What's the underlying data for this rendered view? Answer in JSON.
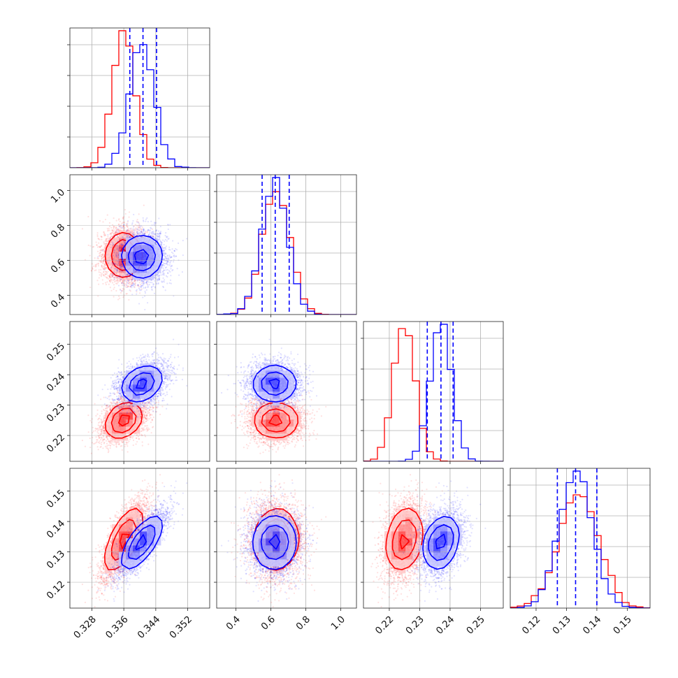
{
  "chart_data": {
    "type": "corner",
    "layout": "lower-triangle 4x4 grid",
    "grid": true,
    "legend": "none",
    "series": [
      {
        "color": "#ff0000",
        "means": [
          0.336,
          0.63,
          0.225,
          0.134
        ],
        "sds": [
          0.0028,
          0.08,
          0.0036,
          0.0065
        ]
      },
      {
        "color": "#0000ff",
        "means": [
          0.3405,
          0.62,
          0.237,
          0.133
        ],
        "sds": [
          0.0031,
          0.075,
          0.0035,
          0.0055
        ]
      }
    ],
    "correlation_notes": {
      "red": {
        "0-3": 0.75,
        "0-1": 0.0,
        "0-2": 0.35
      },
      "blue": {
        "0-3": 0.8,
        "0-1": 0.0,
        "0-2": 0.35
      }
    },
    "quantile_lines": {
      "color": "#0000ff",
      "style": "dashed",
      "values": [
        [
          0.3375,
          0.3408,
          0.3442
        ],
        [
          0.55,
          0.625,
          0.705
        ],
        [
          0.2325,
          0.237,
          0.241
        ],
        [
          0.127,
          0.133,
          0.14
        ]
      ]
    },
    "ranges": [
      [
        0.3225,
        0.3575
      ],
      [
        0.29,
        1.09
      ],
      [
        0.2115,
        0.2575
      ],
      [
        0.1115,
        0.1575
      ]
    ],
    "ticks": [
      [
        0.328,
        0.336,
        0.344,
        0.352
      ],
      [
        0.4,
        0.6,
        0.8,
        1.0
      ],
      [
        0.22,
        0.23,
        0.24,
        0.25
      ],
      [
        0.12,
        0.13,
        0.14,
        0.15
      ]
    ],
    "tick_labels": [
      [
        "0.328",
        "0.336",
        "0.344",
        "0.352"
      ],
      [
        "0.4",
        "0.6",
        "0.8",
        "1.0"
      ],
      [
        "0.22",
        "0.23",
        "0.24",
        "0.25"
      ],
      [
        "0.12",
        "0.13",
        "0.14",
        "0.15"
      ]
    ],
    "histogram_bins": 20,
    "contour_levels": [
      0.118,
      0.393,
      0.675,
      0.865
    ]
  }
}
